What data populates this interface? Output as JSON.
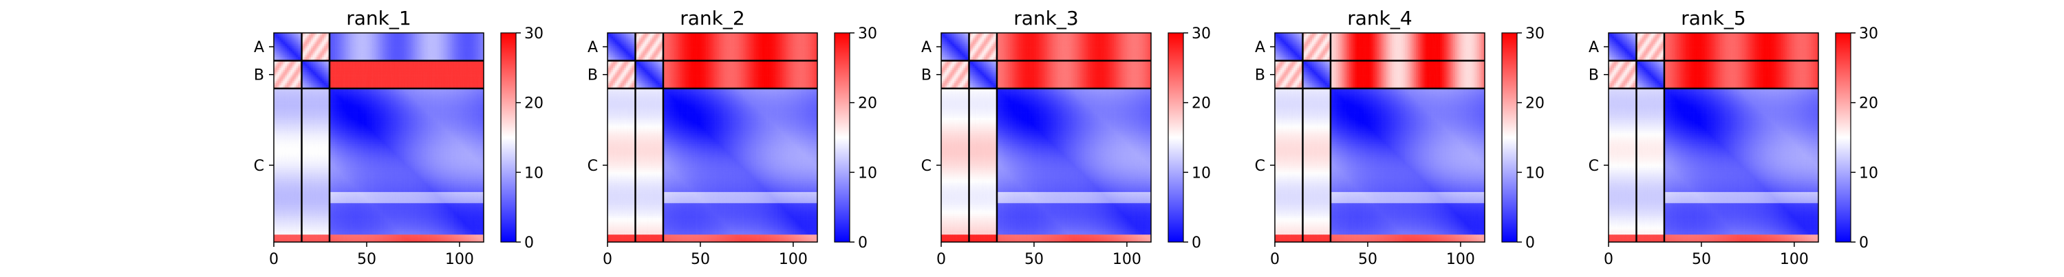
{
  "chart_data": [
    {
      "type": "heatmap",
      "title": "rank_1",
      "xticks": [
        "0",
        "50",
        "100"
      ],
      "xtick_values": [
        0,
        50,
        100
      ],
      "x_range": [
        0,
        113
      ],
      "chain_labels": [
        "A",
        "B",
        "C"
      ],
      "chain_boundaries": [
        0,
        15,
        30,
        113
      ],
      "colorbar_ticks": [
        "0",
        "10",
        "20",
        "30"
      ],
      "colorbar_range": [
        0,
        30
      ],
      "colormap": [
        "#0000ff",
        "#ffffff",
        "#ff0000"
      ]
    },
    {
      "type": "heatmap",
      "title": "rank_2",
      "xticks": [
        "0",
        "50",
        "100"
      ],
      "xtick_values": [
        0,
        50,
        100
      ],
      "x_range": [
        0,
        113
      ],
      "chain_labels": [
        "A",
        "B",
        "C"
      ],
      "chain_boundaries": [
        0,
        15,
        30,
        113
      ],
      "colorbar_ticks": [
        "0",
        "10",
        "20",
        "30"
      ],
      "colorbar_range": [
        0,
        30
      ],
      "colormap": [
        "#0000ff",
        "#ffffff",
        "#ff0000"
      ]
    },
    {
      "type": "heatmap",
      "title": "rank_3",
      "xticks": [
        "0",
        "50",
        "100"
      ],
      "xtick_values": [
        0,
        50,
        100
      ],
      "x_range": [
        0,
        113
      ],
      "chain_labels": [
        "A",
        "B",
        "C"
      ],
      "chain_boundaries": [
        0,
        15,
        30,
        113
      ],
      "colorbar_ticks": [
        "0",
        "10",
        "20",
        "30"
      ],
      "colorbar_range": [
        0,
        30
      ],
      "colormap": [
        "#0000ff",
        "#ffffff",
        "#ff0000"
      ]
    },
    {
      "type": "heatmap",
      "title": "rank_4",
      "xticks": [
        "0",
        "50",
        "100"
      ],
      "xtick_values": [
        0,
        50,
        100
      ],
      "x_range": [
        0,
        113
      ],
      "chain_labels": [
        "A",
        "B",
        "C"
      ],
      "chain_boundaries": [
        0,
        15,
        30,
        113
      ],
      "colorbar_ticks": [
        "0",
        "10",
        "20",
        "30"
      ],
      "colorbar_range": [
        0,
        30
      ],
      "colormap": [
        "#0000ff",
        "#ffffff",
        "#ff0000"
      ]
    },
    {
      "type": "heatmap",
      "title": "rank_5",
      "xticks": [
        "0",
        "50",
        "100"
      ],
      "xtick_values": [
        0,
        50,
        100
      ],
      "x_range": [
        0,
        113
      ],
      "chain_labels": [
        "A",
        "B",
        "C"
      ],
      "chain_boundaries": [
        0,
        15,
        30,
        113
      ],
      "colorbar_ticks": [
        "0",
        "10",
        "20",
        "30"
      ],
      "colorbar_range": [
        0,
        30
      ],
      "colormap": [
        "#0000ff",
        "#ffffff",
        "#ff0000"
      ]
    }
  ]
}
